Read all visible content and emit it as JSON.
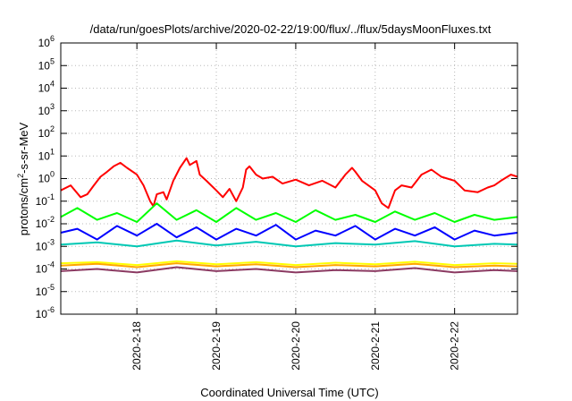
{
  "chart_data": {
    "type": "line",
    "title": "/data/run/goesPlots/archive/2020-02-22/19:00/flux/../flux/5daysMoonFluxes.txt",
    "xlabel": "Coordinated Universal Time (UTC)",
    "ylabel": "protons/cm2-s-sr-MeV",
    "ylabel_parts": {
      "pre": "protons/cm",
      "sup": "2",
      "post": "-s-sr-MeV"
    },
    "y_scale": "log",
    "ylim": [
      1e-06,
      1000000.0
    ],
    "xlim": [
      "2020-02-17 01:00",
      "2020-02-22 19:00"
    ],
    "grid": true,
    "y_ticks": [
      {
        "value": 1e-06,
        "base": "10",
        "exp": "-6"
      },
      {
        "value": 1e-05,
        "base": "10",
        "exp": "-5"
      },
      {
        "value": 0.0001,
        "base": "10",
        "exp": "-4"
      },
      {
        "value": 0.001,
        "base": "10",
        "exp": "-3"
      },
      {
        "value": 0.01,
        "base": "10",
        "exp": "-2"
      },
      {
        "value": 0.1,
        "base": "10",
        "exp": "-1"
      },
      {
        "value": 1.0,
        "base": "10",
        "exp": "0"
      },
      {
        "value": 10.0,
        "base": "10",
        "exp": "1"
      },
      {
        "value": 100.0,
        "base": "10",
        "exp": "2"
      },
      {
        "value": 1000.0,
        "base": "10",
        "exp": "3"
      },
      {
        "value": 10000.0,
        "base": "10",
        "exp": "4"
      },
      {
        "value": 100000.0,
        "base": "10",
        "exp": "5"
      },
      {
        "value": 1000000.0,
        "base": "10",
        "exp": "6"
      }
    ],
    "x_ticks": [
      {
        "date": "2020-02-18",
        "label": "2020-2-18"
      },
      {
        "date": "2020-02-19",
        "label": "2020-2-19"
      },
      {
        "date": "2020-02-20",
        "label": "2020-2-20"
      },
      {
        "date": "2020-02-21",
        "label": "2020-2-21"
      },
      {
        "date": "2020-02-22",
        "label": "2020-2-22"
      }
    ],
    "series": [
      {
        "color": "#ff0000",
        "width": 2,
        "x": [
          "2020-02-17 01:00",
          "2020-02-17 04:00",
          "2020-02-17 07:00",
          "2020-02-17 09:00",
          "2020-02-17 11:00",
          "2020-02-17 13:00",
          "2020-02-17 15:00",
          "2020-02-17 17:00",
          "2020-02-17 19:00",
          "2020-02-17 21:00",
          "2020-02-18 00:00",
          "2020-02-18 02:00",
          "2020-02-18 04:00",
          "2020-02-18 05:00",
          "2020-02-18 06:00",
          "2020-02-18 08:00",
          "2020-02-18 09:00",
          "2020-02-18 11:00",
          "2020-02-18 13:00",
          "2020-02-18 15:00",
          "2020-02-18 16:00",
          "2020-02-18 18:00",
          "2020-02-18 19:00",
          "2020-02-18 21:00",
          "2020-02-19 00:00",
          "2020-02-19 02:00",
          "2020-02-19 04:00",
          "2020-02-19 06:00",
          "2020-02-19 08:00",
          "2020-02-19 09:00",
          "2020-02-19 10:00",
          "2020-02-19 12:00",
          "2020-02-19 14:00",
          "2020-02-19 17:00",
          "2020-02-19 20:00",
          "2020-02-20 00:00",
          "2020-02-20 04:00",
          "2020-02-20 08:00",
          "2020-02-20 12:00",
          "2020-02-20 15:00",
          "2020-02-20 17:00",
          "2020-02-20 18:00",
          "2020-02-20 20:00",
          "2020-02-21 00:00",
          "2020-02-21 02:00",
          "2020-02-21 04:00",
          "2020-02-21 06:00",
          "2020-02-21 08:00",
          "2020-02-21 11:00",
          "2020-02-21 14:00",
          "2020-02-21 17:00",
          "2020-02-21 20:00",
          "2020-02-22 00:00",
          "2020-02-22 03:00",
          "2020-02-22 07:00",
          "2020-02-22 10:00",
          "2020-02-22 12:00",
          "2020-02-22 14:00",
          "2020-02-22 17:00",
          "2020-02-22 19:00"
        ],
        "y": [
          0.3,
          0.5,
          0.15,
          0.2,
          0.5,
          1.2,
          2,
          3.5,
          5,
          3,
          1.5,
          0.5,
          0.1,
          0.06,
          0.2,
          0.25,
          0.12,
          0.8,
          3,
          8,
          4,
          6,
          1.5,
          0.8,
          0.3,
          0.15,
          0.35,
          0.1,
          0.4,
          2.5,
          3.5,
          1.5,
          1,
          1.2,
          0.6,
          0.9,
          0.5,
          0.8,
          0.4,
          1.5,
          3,
          2,
          0.8,
          0.3,
          0.08,
          0.05,
          0.3,
          0.5,
          0.4,
          1.5,
          2.5,
          1.2,
          0.8,
          0.3,
          0.25,
          0.4,
          0.5,
          0.8,
          1.5,
          1.2
        ]
      },
      {
        "color": "#00ff00",
        "width": 2,
        "x": [
          "2020-02-17 01:00",
          "2020-02-17 06:00",
          "2020-02-17 12:00",
          "2020-02-17 18:00",
          "2020-02-18 00:00",
          "2020-02-18 06:00",
          "2020-02-18 12:00",
          "2020-02-18 18:00",
          "2020-02-19 00:00",
          "2020-02-19 06:00",
          "2020-02-19 12:00",
          "2020-02-19 18:00",
          "2020-02-20 00:00",
          "2020-02-20 06:00",
          "2020-02-20 12:00",
          "2020-02-20 18:00",
          "2020-02-21 00:00",
          "2020-02-21 06:00",
          "2020-02-21 12:00",
          "2020-02-21 18:00",
          "2020-02-22 00:00",
          "2020-02-22 06:00",
          "2020-02-22 12:00",
          "2020-02-22 19:00"
        ],
        "y": [
          0.02,
          0.05,
          0.015,
          0.03,
          0.012,
          0.08,
          0.015,
          0.04,
          0.012,
          0.05,
          0.015,
          0.03,
          0.012,
          0.04,
          0.015,
          0.025,
          0.012,
          0.035,
          0.015,
          0.03,
          0.012,
          0.025,
          0.015,
          0.02
        ]
      },
      {
        "color": "#0000ff",
        "width": 2,
        "x": [
          "2020-02-17 01:00",
          "2020-02-17 06:00",
          "2020-02-17 12:00",
          "2020-02-17 18:00",
          "2020-02-18 00:00",
          "2020-02-18 06:00",
          "2020-02-18 12:00",
          "2020-02-18 18:00",
          "2020-02-19 00:00",
          "2020-02-19 06:00",
          "2020-02-19 12:00",
          "2020-02-19 18:00",
          "2020-02-20 00:00",
          "2020-02-20 06:00",
          "2020-02-20 12:00",
          "2020-02-20 18:00",
          "2020-02-21 00:00",
          "2020-02-21 06:00",
          "2020-02-21 12:00",
          "2020-02-21 18:00",
          "2020-02-22 00:00",
          "2020-02-22 06:00",
          "2020-02-22 12:00",
          "2020-02-22 19:00"
        ],
        "y": [
          0.004,
          0.006,
          0.002,
          0.008,
          0.003,
          0.01,
          0.0025,
          0.007,
          0.002,
          0.006,
          0.003,
          0.009,
          0.002,
          0.005,
          0.003,
          0.008,
          0.002,
          0.006,
          0.003,
          0.007,
          0.002,
          0.005,
          0.003,
          0.004
        ]
      },
      {
        "color": "#00c8b4",
        "width": 2,
        "x": [
          "2020-02-17 01:00",
          "2020-02-17 12:00",
          "2020-02-18 00:00",
          "2020-02-18 12:00",
          "2020-02-19 00:00",
          "2020-02-19 12:00",
          "2020-02-20 00:00",
          "2020-02-20 12:00",
          "2020-02-21 00:00",
          "2020-02-21 12:00",
          "2020-02-22 00:00",
          "2020-02-22 12:00",
          "2020-02-22 19:00"
        ],
        "y": [
          0.0012,
          0.0015,
          0.001,
          0.0018,
          0.0011,
          0.0016,
          0.001,
          0.0014,
          0.0012,
          0.0017,
          0.001,
          0.0013,
          0.0012
        ]
      },
      {
        "color": "#ffff00",
        "width": 2,
        "x": [
          "2020-02-17 01:00",
          "2020-02-17 12:00",
          "2020-02-18 00:00",
          "2020-02-18 12:00",
          "2020-02-19 00:00",
          "2020-02-19 12:00",
          "2020-02-20 00:00",
          "2020-02-20 12:00",
          "2020-02-21 00:00",
          "2020-02-21 12:00",
          "2020-02-22 00:00",
          "2020-02-22 12:00",
          "2020-02-22 19:00"
        ],
        "y": [
          0.00018,
          0.0002,
          0.00015,
          0.00022,
          0.00016,
          0.0002,
          0.00015,
          0.00019,
          0.00016,
          0.00021,
          0.00015,
          0.00018,
          0.00017
        ]
      },
      {
        "color": "#ffa500",
        "width": 2,
        "x": [
          "2020-02-17 01:00",
          "2020-02-17 12:00",
          "2020-02-18 00:00",
          "2020-02-18 12:00",
          "2020-02-19 00:00",
          "2020-02-19 12:00",
          "2020-02-20 00:00",
          "2020-02-20 12:00",
          "2020-02-21 00:00",
          "2020-02-21 12:00",
          "2020-02-22 00:00",
          "2020-02-22 12:00",
          "2020-02-22 19:00"
        ],
        "y": [
          0.00014,
          0.00017,
          0.00012,
          0.00018,
          0.00013,
          0.00016,
          0.00012,
          0.00015,
          0.00013,
          0.00017,
          0.00012,
          0.00014,
          0.00013
        ]
      },
      {
        "color": "#8b3a62",
        "width": 2,
        "x": [
          "2020-02-17 01:00",
          "2020-02-17 12:00",
          "2020-02-18 00:00",
          "2020-02-18 12:00",
          "2020-02-19 00:00",
          "2020-02-19 12:00",
          "2020-02-20 00:00",
          "2020-02-20 12:00",
          "2020-02-21 00:00",
          "2020-02-21 12:00",
          "2020-02-22 00:00",
          "2020-02-22 12:00",
          "2020-02-22 19:00"
        ],
        "y": [
          8e-05,
          0.0001,
          7e-05,
          0.00012,
          8e-05,
          0.0001,
          7e-05,
          9e-05,
          8e-05,
          0.00011,
          7e-05,
          9e-05,
          8e-05
        ]
      }
    ]
  }
}
